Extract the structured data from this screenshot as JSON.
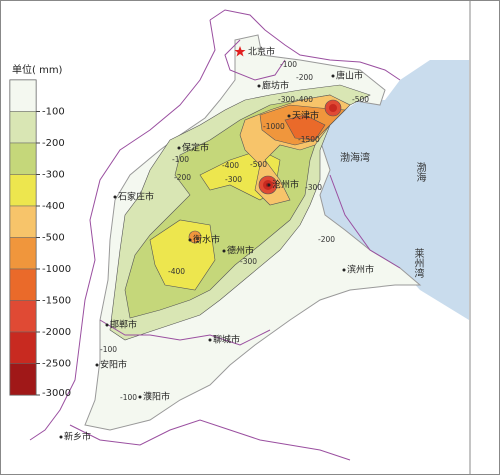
{
  "legend": {
    "title": "单位( mm)",
    "items": [
      {
        "label": "-100",
        "color": "#f4f8f0"
      },
      {
        "label": "-200",
        "color": "#d9e6b4"
      },
      {
        "label": "-300",
        "color": "#c5d77a"
      },
      {
        "label": "-400",
        "color": "#ede64e"
      },
      {
        "label": "-500",
        "color": "#f7c46a"
      },
      {
        "label": "-1000",
        "color": "#f0963c"
      },
      {
        "label": "-1500",
        "color": "#ea6a2a"
      },
      {
        "label": "-2000",
        "color": "#e04a34"
      },
      {
        "label": "-2500",
        "color": "#c82a20"
      },
      {
        "label": "-3000",
        "color": "#a01818"
      }
    ]
  },
  "places": [
    "北京市",
    "廊坊市",
    "唐山市",
    "天津市",
    "保定市",
    "沧州市",
    "石家庄市",
    "衡水市",
    "德州市",
    "滨州市",
    "邯郸市",
    "聊城市",
    "安阳市",
    "濮阳市",
    "新乡市"
  ],
  "seas": [
    "渤海湾",
    "渤海",
    "莱州湾"
  ],
  "contour_labels": [
    "-100",
    "-200",
    "-300",
    "-400",
    "-500",
    "-1000",
    "-1500",
    "-400",
    "-500",
    "-300",
    "-300",
    "-100",
    "-200",
    "-400",
    "-300",
    "-200",
    "-100",
    "-100"
  ]
}
